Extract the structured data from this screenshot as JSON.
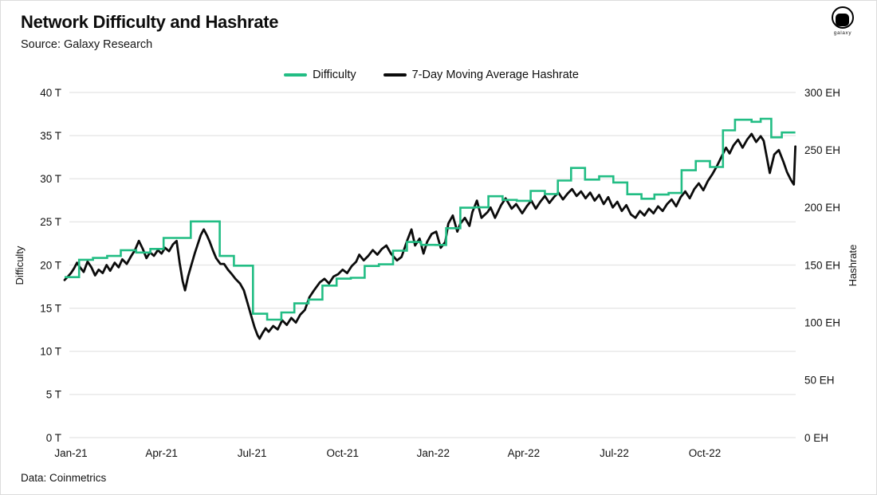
{
  "header": {
    "title": "Network Difficulty and Hashrate",
    "source": "Source: Galaxy Research"
  },
  "logo": {
    "wordmark": "galaxy"
  },
  "legend": {
    "items": [
      {
        "label": "Difficulty",
        "color": "#22bd84"
      },
      {
        "label": "7-Day Moving Average Hashrate",
        "color": "#0b0b0b"
      }
    ]
  },
  "footer": {
    "text": "Data: Coinmetrics"
  },
  "chart_data": {
    "type": "line",
    "title": "Network Difficulty and Hashrate",
    "grid": "horizontal-only",
    "legend_position": "top-center",
    "colors": {
      "difficulty": "#22bd84",
      "hashrate": "#0b0b0b",
      "gridline": "#e4e4e4"
    },
    "x_axis": {
      "start_month": -0.21,
      "end_month": 24.0,
      "ticks": [
        {
          "m": 0,
          "label": "Jan-21"
        },
        {
          "m": 3,
          "label": "Apr-21"
        },
        {
          "m": 6,
          "label": "Jul-21"
        },
        {
          "m": 9,
          "label": "Oct-21"
        },
        {
          "m": 12,
          "label": "Jan-22"
        },
        {
          "m": 15,
          "label": "Apr-22"
        },
        {
          "m": 18,
          "label": "Jul-22"
        },
        {
          "m": 21,
          "label": "Oct-22"
        }
      ]
    },
    "y_left": {
      "label": "Difficulty",
      "unit": "T",
      "range": [
        0,
        40
      ],
      "ticks": [
        {
          "v": 0,
          "label": "0 T"
        },
        {
          "v": 5,
          "label": "5 T"
        },
        {
          "v": 10,
          "label": "10 T"
        },
        {
          "v": 15,
          "label": "15 T"
        },
        {
          "v": 20,
          "label": "20 T"
        },
        {
          "v": 25,
          "label": "25 T"
        },
        {
          "v": 30,
          "label": "30 T"
        },
        {
          "v": 35,
          "label": "35 T"
        },
        {
          "v": 40,
          "label": "40 T"
        }
      ]
    },
    "y_right": {
      "label": "Hashrate",
      "unit": "EH",
      "range": [
        0,
        300
      ],
      "ticks": [
        {
          "v": 0,
          "label": "0 EH"
        },
        {
          "v": 50,
          "label": "50 EH"
        },
        {
          "v": 100,
          "label": "100 EH"
        },
        {
          "v": 150,
          "label": "150 EH"
        },
        {
          "v": 200,
          "label": "200 EH"
        },
        {
          "v": 250,
          "label": "250 EH"
        },
        {
          "v": 300,
          "label": "300 EH"
        }
      ]
    },
    "series": [
      {
        "name": "Difficulty",
        "axis": "left",
        "style": "step",
        "color": "#22bd84",
        "points": [
          [
            -0.21,
            18.6
          ],
          [
            0.27,
            20.61
          ],
          [
            0.73,
            20.82
          ],
          [
            1.2,
            21.05
          ],
          [
            1.65,
            21.72
          ],
          [
            2.16,
            21.45
          ],
          [
            2.63,
            21.87
          ],
          [
            3.07,
            23.14
          ],
          [
            3.97,
            25.05
          ],
          [
            4.93,
            21.05
          ],
          [
            5.4,
            19.93
          ],
          [
            6.03,
            14.36
          ],
          [
            6.5,
            13.67
          ],
          [
            6.97,
            14.5
          ],
          [
            7.4,
            15.56
          ],
          [
            7.87,
            16.0
          ],
          [
            8.33,
            17.62
          ],
          [
            8.8,
            18.42
          ],
          [
            9.27,
            18.52
          ],
          [
            9.73,
            19.89
          ],
          [
            10.2,
            20.08
          ],
          [
            10.67,
            21.66
          ],
          [
            11.13,
            22.67
          ],
          [
            11.6,
            22.34
          ],
          [
            12.07,
            22.33
          ],
          [
            12.43,
            24.27
          ],
          [
            12.9,
            26.64
          ],
          [
            13.37,
            26.69
          ],
          [
            13.83,
            27.97
          ],
          [
            14.3,
            27.55
          ],
          [
            14.77,
            27.45
          ],
          [
            15.23,
            28.59
          ],
          [
            15.7,
            28.23
          ],
          [
            16.13,
            29.79
          ],
          [
            16.57,
            31.25
          ],
          [
            17.03,
            29.9
          ],
          [
            17.5,
            30.28
          ],
          [
            17.97,
            29.57
          ],
          [
            18.43,
            28.2
          ],
          [
            18.9,
            27.69
          ],
          [
            19.33,
            28.17
          ],
          [
            19.8,
            28.35
          ],
          [
            20.23,
            30.98
          ],
          [
            20.7,
            32.05
          ],
          [
            21.17,
            31.36
          ],
          [
            21.6,
            35.61
          ],
          [
            22.0,
            36.84
          ],
          [
            22.55,
            36.6
          ],
          [
            22.85,
            36.95
          ],
          [
            23.2,
            34.8
          ],
          [
            23.55,
            35.36
          ]
        ]
      },
      {
        "name": "7-Day Moving Average Hashrate",
        "axis": "right",
        "style": "line",
        "color": "#0b0b0b",
        "points": [
          [
            -0.21,
            137
          ],
          [
            -0.1,
            140
          ],
          [
            0,
            143
          ],
          [
            0.1,
            147
          ],
          [
            0.2,
            152
          ],
          [
            0.3,
            148
          ],
          [
            0.42,
            144
          ],
          [
            0.55,
            153
          ],
          [
            0.68,
            148
          ],
          [
            0.8,
            141
          ],
          [
            0.92,
            146
          ],
          [
            1.05,
            143
          ],
          [
            1.18,
            150
          ],
          [
            1.3,
            145
          ],
          [
            1.45,
            152
          ],
          [
            1.58,
            148
          ],
          [
            1.7,
            155
          ],
          [
            1.85,
            151
          ],
          [
            2,
            158
          ],
          [
            2.12,
            163
          ],
          [
            2.25,
            171
          ],
          [
            2.38,
            164
          ],
          [
            2.5,
            156
          ],
          [
            2.62,
            161
          ],
          [
            2.75,
            158
          ],
          [
            2.88,
            163
          ],
          [
            3,
            160
          ],
          [
            3.12,
            165
          ],
          [
            3.25,
            162
          ],
          [
            3.38,
            168
          ],
          [
            3.5,
            171
          ],
          [
            3.6,
            152
          ],
          [
            3.7,
            136
          ],
          [
            3.78,
            128
          ],
          [
            3.88,
            140
          ],
          [
            4,
            151
          ],
          [
            4.1,
            160
          ],
          [
            4.2,
            168
          ],
          [
            4.3,
            176
          ],
          [
            4.4,
            181
          ],
          [
            4.5,
            176
          ],
          [
            4.6,
            170
          ],
          [
            4.7,
            163
          ],
          [
            4.81,
            156
          ],
          [
            4.95,
            151
          ],
          [
            5.07,
            151
          ],
          [
            5.2,
            146
          ],
          [
            5.33,
            142
          ],
          [
            5.45,
            138
          ],
          [
            5.6,
            134
          ],
          [
            5.73,
            128
          ],
          [
            5.86,
            116
          ],
          [
            5.97,
            106
          ],
          [
            6.08,
            96
          ],
          [
            6.18,
            89
          ],
          [
            6.25,
            86
          ],
          [
            6.35,
            91
          ],
          [
            6.45,
            95
          ],
          [
            6.55,
            92
          ],
          [
            6.7,
            97
          ],
          [
            6.85,
            94
          ],
          [
            7,
            102
          ],
          [
            7.15,
            98
          ],
          [
            7.3,
            104
          ],
          [
            7.45,
            100
          ],
          [
            7.6,
            107
          ],
          [
            7.75,
            111
          ],
          [
            7.9,
            122
          ],
          [
            8.05,
            128
          ],
          [
            8.25,
            135
          ],
          [
            8.4,
            138
          ],
          [
            8.55,
            134
          ],
          [
            8.7,
            140
          ],
          [
            8.85,
            142
          ],
          [
            9,
            146
          ],
          [
            9.15,
            143
          ],
          [
            9.3,
            149
          ],
          [
            9.45,
            153
          ],
          [
            9.55,
            159
          ],
          [
            9.7,
            154
          ],
          [
            9.85,
            158
          ],
          [
            10,
            163
          ],
          [
            10.15,
            159
          ],
          [
            10.3,
            164
          ],
          [
            10.45,
            167
          ],
          [
            10.6,
            160
          ],
          [
            10.8,
            154
          ],
          [
            10.95,
            157
          ],
          [
            11.15,
            172
          ],
          [
            11.28,
            181
          ],
          [
            11.4,
            167
          ],
          [
            11.55,
            173
          ],
          [
            11.68,
            160
          ],
          [
            11.8,
            170
          ],
          [
            11.95,
            177
          ],
          [
            12.1,
            179
          ],
          [
            12.25,
            165
          ],
          [
            12.4,
            170
          ],
          [
            12.5,
            186
          ],
          [
            12.65,
            193
          ],
          [
            12.8,
            179
          ],
          [
            12.9,
            186
          ],
          [
            13.05,
            191
          ],
          [
            13.2,
            184
          ],
          [
            13.3,
            196
          ],
          [
            13.45,
            206
          ],
          [
            13.6,
            191
          ],
          [
            13.8,
            196
          ],
          [
            13.9,
            200
          ],
          [
            14.05,
            191
          ],
          [
            14.25,
            202
          ],
          [
            14.4,
            208
          ],
          [
            14.6,
            199
          ],
          [
            14.75,
            203
          ],
          [
            14.95,
            195
          ],
          [
            15.1,
            201
          ],
          [
            15.25,
            206
          ],
          [
            15.4,
            199
          ],
          [
            15.55,
            205
          ],
          [
            15.7,
            210
          ],
          [
            15.85,
            204
          ],
          [
            16,
            209
          ],
          [
            16.15,
            213
          ],
          [
            16.3,
            207
          ],
          [
            16.45,
            212
          ],
          [
            16.6,
            216
          ],
          [
            16.75,
            210
          ],
          [
            16.9,
            214
          ],
          [
            17.05,
            208
          ],
          [
            17.2,
            213
          ],
          [
            17.35,
            206
          ],
          [
            17.5,
            211
          ],
          [
            17.65,
            203
          ],
          [
            17.8,
            209
          ],
          [
            17.95,
            200
          ],
          [
            18.1,
            205
          ],
          [
            18.25,
            197
          ],
          [
            18.4,
            202
          ],
          [
            18.55,
            194
          ],
          [
            18.7,
            191
          ],
          [
            18.85,
            197
          ],
          [
            19,
            193
          ],
          [
            19.15,
            199
          ],
          [
            19.3,
            195
          ],
          [
            19.45,
            201
          ],
          [
            19.6,
            197
          ],
          [
            19.75,
            203
          ],
          [
            19.9,
            207
          ],
          [
            20.05,
            201
          ],
          [
            20.2,
            209
          ],
          [
            20.35,
            214
          ],
          [
            20.5,
            208
          ],
          [
            20.65,
            216
          ],
          [
            20.8,
            221
          ],
          [
            20.95,
            215
          ],
          [
            21.1,
            223
          ],
          [
            21.25,
            229
          ],
          [
            21.4,
            236
          ],
          [
            21.55,
            244
          ],
          [
            21.7,
            252
          ],
          [
            21.82,
            247
          ],
          [
            21.95,
            254
          ],
          [
            22.1,
            259
          ],
          [
            22.25,
            252
          ],
          [
            22.4,
            259
          ],
          [
            22.55,
            264
          ],
          [
            22.7,
            257
          ],
          [
            22.85,
            262
          ],
          [
            22.95,
            258
          ],
          [
            23.05,
            244
          ],
          [
            23.15,
            230
          ],
          [
            23.3,
            246
          ],
          [
            23.45,
            250
          ],
          [
            23.6,
            240
          ],
          [
            23.72,
            231
          ],
          [
            23.85,
            224
          ],
          [
            23.95,
            220
          ],
          [
            24,
            253
          ]
        ]
      }
    ]
  }
}
